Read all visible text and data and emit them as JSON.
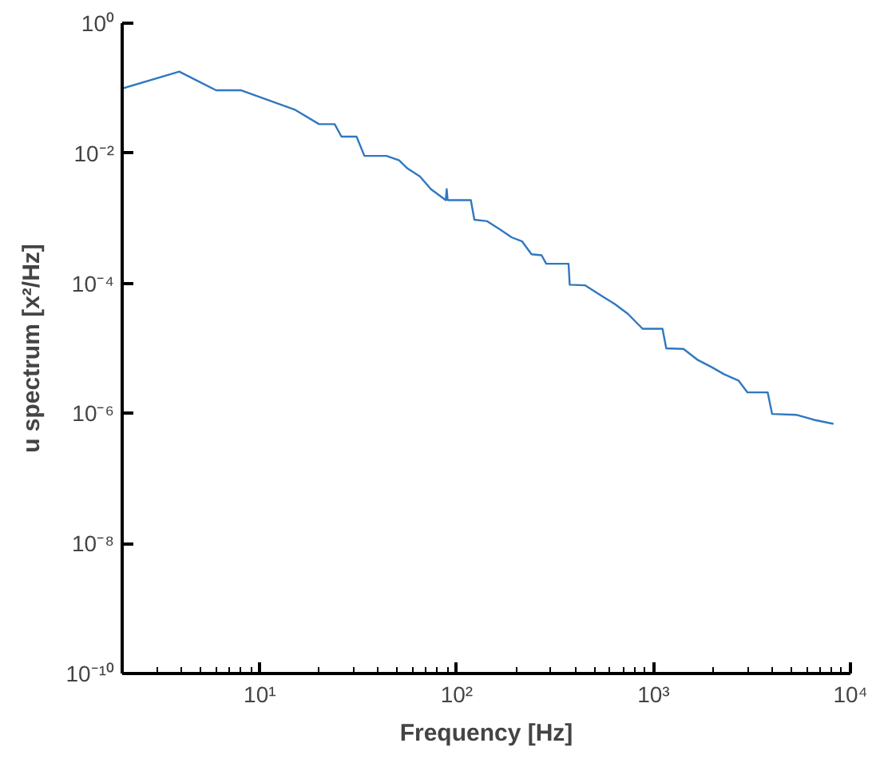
{
  "chart_data": {
    "type": "line",
    "xlabel": "Frequency [Hz]",
    "ylabel": "u spectrum [x²/Hz]",
    "log": "xy",
    "x": [
      2,
      3.9,
      6.0,
      8,
      15,
      20,
      24,
      26,
      31,
      34,
      44,
      51,
      56,
      65,
      74,
      88,
      89,
      90,
      118,
      123,
      143,
      165,
      190,
      215,
      240,
      270,
      285,
      370,
      375,
      450,
      550,
      635,
      740,
      880,
      1110,
      1160,
      1420,
      1680,
      1960,
      2280,
      2700,
      3000,
      3800,
      4000,
      5300,
      6600,
      8200
    ],
    "series": [
      {
        "color": "#2f78c0",
        "values": [
          0.099,
          0.18,
          0.093,
          0.093,
          0.047,
          0.028,
          0.028,
          0.018,
          0.018,
          0.0091,
          0.0091,
          0.0078,
          0.0059,
          0.0044,
          0.0028,
          0.0019,
          0.0028,
          0.0019,
          0.0019,
          0.00095,
          0.0009,
          0.00068,
          0.00051,
          0.00044,
          0.00028,
          0.00027,
          0.0002,
          0.0002,
          9.5e-05,
          9.3e-05,
          6.3e-05,
          4.8e-05,
          3.4e-05,
          2e-05,
          2e-05,
          1e-05,
          9.8e-06,
          6.6e-06,
          5.2e-06,
          4e-06,
          3.2e-06,
          2.1e-06,
          2.1e-06,
          9.8e-07,
          9.5e-07,
          7.9e-07,
          6.9e-07
        ]
      }
    ],
    "xlim": [
      2,
      10000
    ],
    "ylim": [
      1e-10,
      1
    ],
    "xticks": [
      {
        "value": 3,
        "label": null
      },
      {
        "value": 4,
        "label": null
      },
      {
        "value": 5,
        "label": null
      },
      {
        "value": 6,
        "label": null
      },
      {
        "value": 7,
        "label": null
      },
      {
        "value": 8,
        "label": null
      },
      {
        "value": 9,
        "label": null
      },
      {
        "value": 10,
        "label": "10¹"
      },
      {
        "value": 20,
        "label": null
      },
      {
        "value": 30,
        "label": null
      },
      {
        "value": 40,
        "label": null
      },
      {
        "value": 50,
        "label": null
      },
      {
        "value": 60,
        "label": null
      },
      {
        "value": 70,
        "label": null
      },
      {
        "value": 80,
        "label": null
      },
      {
        "value": 90,
        "label": null
      },
      {
        "value": 100,
        "label": "10²"
      },
      {
        "value": 200,
        "label": null
      },
      {
        "value": 300,
        "label": null
      },
      {
        "value": 400,
        "label": null
      },
      {
        "value": 500,
        "label": null
      },
      {
        "value": 600,
        "label": null
      },
      {
        "value": 700,
        "label": null
      },
      {
        "value": 800,
        "label": null
      },
      {
        "value": 900,
        "label": null
      },
      {
        "value": 1000,
        "label": "10³"
      },
      {
        "value": 2000,
        "label": null
      },
      {
        "value": 3000,
        "label": null
      },
      {
        "value": 4000,
        "label": null
      },
      {
        "value": 5000,
        "label": null
      },
      {
        "value": 6000,
        "label": null
      },
      {
        "value": 7000,
        "label": null
      },
      {
        "value": 8000,
        "label": null
      },
      {
        "value": 9000,
        "label": null
      },
      {
        "value": 10000,
        "label": "10⁴"
      }
    ],
    "yticks": [
      {
        "value": 1e-10,
        "label": "10⁻¹⁰"
      },
      {
        "value": 1e-08,
        "label": "10⁻⁸"
      },
      {
        "value": 1e-06,
        "label": "10⁻⁶"
      },
      {
        "value": 0.0001,
        "label": "10⁻⁴"
      },
      {
        "value": 0.01,
        "label": "10⁻²"
      },
      {
        "value": 1,
        "label": "10⁰"
      }
    ],
    "line_style": "solid"
  }
}
